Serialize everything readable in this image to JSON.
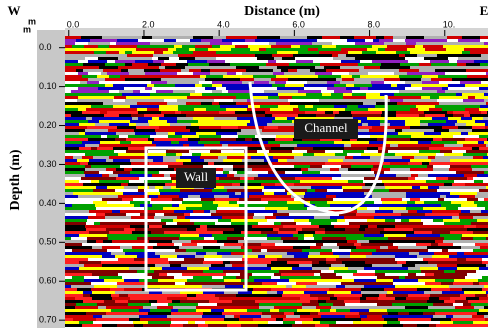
{
  "chart_data": {
    "type": "radargram",
    "x_label": "Distance (m)",
    "y_label": "Depth (m)",
    "left_end": "W",
    "right_end": "E",
    "x_unit": "m",
    "y_unit": "m",
    "xlim": [
      -0.1,
      11.15
    ],
    "xticks": [
      {
        "value": 0,
        "label": "0.0"
      },
      {
        "value": 2,
        "label": "2.0"
      },
      {
        "value": 4,
        "label": "4.0"
      },
      {
        "value": 6,
        "label": "6.0"
      },
      {
        "value": 8,
        "label": "8.0"
      },
      {
        "value": 10,
        "label": "10."
      }
    ],
    "ylim": [
      -0.03,
      0.715
    ],
    "yticks": [
      {
        "value": 0,
        "label": "0.0"
      },
      {
        "value": 0.1,
        "label": "0.10"
      },
      {
        "value": 0.2,
        "label": "0.20"
      },
      {
        "value": 0.3,
        "label": "0.30"
      },
      {
        "value": 0.4,
        "label": "0.40"
      },
      {
        "value": 0.5,
        "label": "0.50"
      },
      {
        "value": 0.6,
        "label": "0.60"
      },
      {
        "value": 0.7,
        "label": "0.70"
      }
    ],
    "annotations": [
      "Wall",
      "Channel"
    ]
  }
}
